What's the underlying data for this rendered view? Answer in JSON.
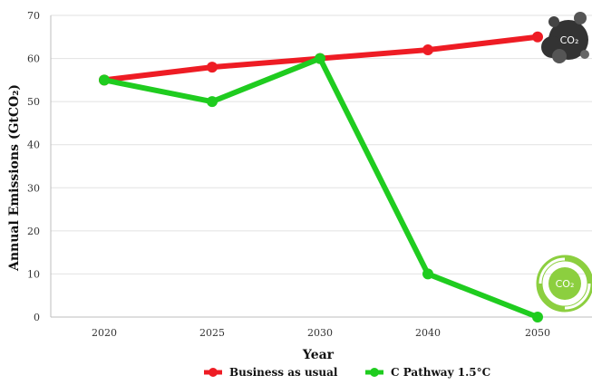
{
  "chart_data": {
    "type": "line",
    "x": [
      "2020",
      "2025",
      "2030",
      "2040",
      "2050"
    ],
    "xlabel": "Year",
    "ylabel": "Annual Emissions (GtCO₂)",
    "ylim": [
      0,
      70
    ],
    "yticks": [
      0,
      10,
      20,
      30,
      40,
      50,
      60,
      70
    ],
    "grid": true,
    "legend_position": "bottom",
    "series": [
      {
        "name": "Business as usual",
        "color": "#ee1c24",
        "values": [
          55,
          58,
          60,
          62,
          65
        ]
      },
      {
        "name": "C Pathway 1.5°C",
        "color": "#1fcc1f",
        "values": [
          55,
          50,
          60,
          10,
          0
        ]
      }
    ]
  },
  "icons": {
    "co2_cloud": {
      "name": "co2-cloud-icon",
      "label": "CO₂",
      "color": "#333333"
    },
    "co2_recycle": {
      "name": "co2-recycle-icon",
      "label": "CO₂",
      "color": "#8ccf3f"
    }
  }
}
